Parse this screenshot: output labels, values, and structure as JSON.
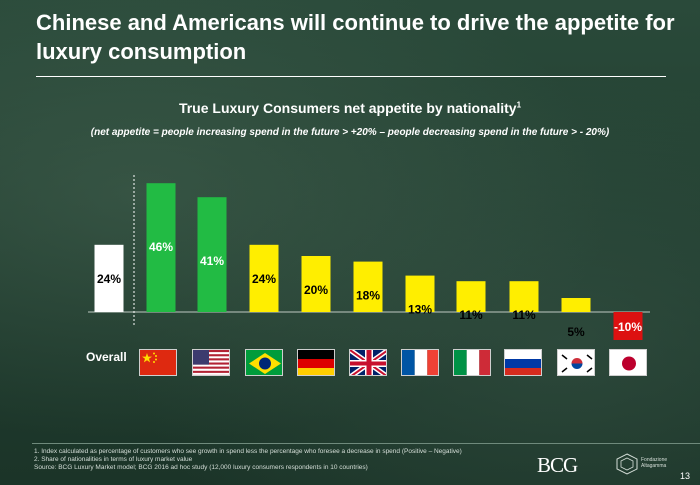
{
  "headline": "Chinese and Americans will continue to drive the appetite for luxury consumption",
  "subtitle": "True Luxury Consumers net appetite by nationality",
  "subtitle_sup": "1",
  "note": "(net appetite = people increasing spend in the future > +20% – people decreasing spend in the future > - 20%)",
  "overall_label": "Overall",
  "chart_data": {
    "type": "bar",
    "title": "True Luxury Consumers net appetite by nationality",
    "categories": [
      "Overall",
      "China",
      "USA",
      "Brazil",
      "Germany",
      "UK",
      "France",
      "Italy",
      "Russia",
      "South Korea",
      "Japan"
    ],
    "values": [
      24,
      46,
      41,
      24,
      20,
      18,
      13,
      11,
      11,
      5,
      -10
    ],
    "labels": [
      "24%",
      "46%",
      "41%",
      "24%",
      "20%",
      "18%",
      "13%",
      "11%",
      "11%",
      "5%",
      "-10%"
    ],
    "colors": [
      "#ffffff",
      "#22bb44",
      "#22bb44",
      "#ffee00",
      "#ffee00",
      "#ffee00",
      "#ffee00",
      "#ffee00",
      "#ffee00",
      "#ffee00",
      "#dd1111"
    ],
    "ylim": [
      -12,
      50
    ],
    "xlabel": "",
    "ylabel": "",
    "grid": false
  },
  "flags": [
    "china-flag",
    "usa-flag",
    "brazil-flag",
    "germany-flag",
    "uk-flag",
    "france-flag",
    "italy-flag",
    "russia-flag",
    "south-korea-flag",
    "japan-flag"
  ],
  "footnotes": [
    "1. Index calculated as percentage of customers who see growth in spend less the percentage who foresee a decrease in spend (Positive – Negative)",
    "2. Share of nationalities in terms of luxury market value",
    "Source: BCG Luxury Market model; BCG 2016 ad hoc study (12,000 luxury consumers respondents in 10 countries)"
  ],
  "logo_bcg": "BCG",
  "logo_altagamma": [
    "Fondazione",
    "Altagamma"
  ],
  "page_number": "13"
}
